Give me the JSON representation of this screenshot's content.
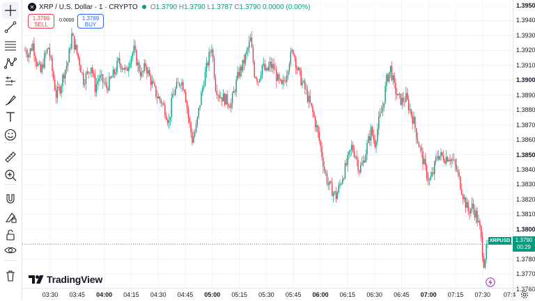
{
  "legend": {
    "symbol": "XRP / U.S. Dollar · 1 · CRYPTO",
    "o_label": "O",
    "o": "1.3790",
    "h_label": "H",
    "h": "1.3790",
    "l_label": "L",
    "l": "1.3787",
    "c_label": "C",
    "c": "1.3790",
    "change": "0.0000 (0.00%)"
  },
  "trade": {
    "sell_price": "1.3789",
    "sell_label": "SELL",
    "spread": "0.0000",
    "buy_price": "1.3789",
    "buy_label": "BUY"
  },
  "brand": {
    "wordmark": "TradingView"
  },
  "price_tag": {
    "symbol": "XRPUSD",
    "price": "1.3790",
    "countdown": "00:29"
  },
  "toolbar": {
    "icons": [
      "crosshair-icon",
      "trend-line-icon",
      "fib-retracement-icon",
      "pattern-icon",
      "prediction-icon",
      "brush-icon",
      "text-icon",
      "emoji-icon",
      "ruler-icon",
      "zoom-in-icon",
      "magnet-icon",
      "lock-drawings-icon",
      "unlock-icon",
      "eye-icon",
      "trash-icon"
    ]
  },
  "colors": {
    "up": "#089981",
    "down": "#f23645",
    "grid": "#f0f3fa",
    "accent": "#2962ff"
  },
  "chart_data": {
    "type": "candlestick",
    "symbol": "XRPUSD",
    "y_ticks": [
      "1.3950",
      "1.3940",
      "1.3930",
      "1.3920",
      "1.3910",
      "1.3900",
      "1.3890",
      "1.3880",
      "1.3870",
      "1.3860",
      "1.3850",
      "1.3840",
      "1.3830",
      "1.3820",
      "1.3810",
      "1.3800",
      "1.3790",
      "1.3780",
      "1.3770",
      "1.3760"
    ],
    "bold_y_ticks": [
      "1.3950",
      "1.3900",
      "1.3850",
      "1.3800"
    ],
    "x_ticks": [
      "03:30",
      "03:45",
      "04:00",
      "04:15",
      "04:30",
      "04:45",
      "05:00",
      "05:15",
      "05:30",
      "05:45",
      "06:00",
      "06:15",
      "06:30",
      "06:45",
      "07:00",
      "07:15",
      "07:30",
      "07:4"
    ],
    "bold_x_ticks": [
      "04:00",
      "05:00",
      "06:00",
      "07:00"
    ],
    "ylim": [
      1.376,
      1.3953
    ],
    "last_price": 1.379,
    "close_path": [
      [
        0,
        1.392
      ],
      [
        3,
        1.3918
      ],
      [
        6,
        1.3924
      ],
      [
        9,
        1.3912
      ],
      [
        12,
        1.3905
      ],
      [
        15,
        1.3915
      ],
      [
        18,
        1.3922
      ],
      [
        21,
        1.3906
      ],
      [
        24,
        1.389
      ],
      [
        27,
        1.3895
      ],
      [
        30,
        1.3905
      ],
      [
        33,
        1.3912
      ],
      [
        36,
        1.393
      ],
      [
        39,
        1.3921
      ],
      [
        42,
        1.3912
      ],
      [
        45,
        1.39
      ],
      [
        48,
        1.3904
      ],
      [
        51,
        1.391
      ],
      [
        54,
        1.3895
      ],
      [
        57,
        1.3902
      ],
      [
        60,
        1.3899
      ],
      [
        63,
        1.3895
      ],
      [
        66,
        1.39
      ],
      [
        69,
        1.3905
      ],
      [
        72,
        1.3912
      ],
      [
        75,
        1.391
      ],
      [
        78,
        1.3905
      ],
      [
        81,
        1.3915
      ],
      [
        84,
        1.392
      ],
      [
        87,
        1.391
      ],
      [
        90,
        1.3903
      ],
      [
        93,
        1.391
      ],
      [
        96,
        1.3902
      ],
      [
        99,
        1.3895
      ],
      [
        102,
        1.3889
      ],
      [
        105,
        1.3886
      ],
      [
        108,
        1.388
      ],
      [
        111,
        1.3872
      ],
      [
        114,
        1.389
      ],
      [
        117,
        1.3895
      ],
      [
        120,
        1.39
      ],
      [
        123,
        1.3895
      ],
      [
        126,
        1.3875
      ],
      [
        129,
        1.386
      ],
      [
        132,
        1.3868
      ],
      [
        135,
        1.3885
      ],
      [
        138,
        1.39
      ],
      [
        141,
        1.3912
      ],
      [
        144,
        1.3923
      ],
      [
        147,
        1.3896
      ],
      [
        150,
        1.389
      ],
      [
        153,
        1.3888
      ],
      [
        156,
        1.3886
      ],
      [
        159,
        1.3884
      ],
      [
        162,
        1.3895
      ],
      [
        165,
        1.3905
      ],
      [
        168,
        1.391
      ],
      [
        171,
        1.3918
      ],
      [
        174,
        1.3927
      ],
      [
        177,
        1.3905
      ],
      [
        180,
        1.39
      ],
      [
        183,
        1.391
      ],
      [
        186,
        1.3905
      ],
      [
        189,
        1.391
      ],
      [
        192,
        1.3908
      ],
      [
        195,
        1.39
      ],
      [
        198,
        1.3895
      ],
      [
        201,
        1.3902
      ],
      [
        204,
        1.3914
      ],
      [
        207,
        1.392
      ],
      [
        210,
        1.3908
      ],
      [
        213,
        1.39
      ],
      [
        216,
        1.3894
      ],
      [
        219,
        1.3886
      ],
      [
        222,
        1.3878
      ],
      [
        225,
        1.3868
      ],
      [
        228,
        1.3855
      ],
      [
        231,
        1.384
      ],
      [
        234,
        1.383
      ],
      [
        237,
        1.3826
      ],
      [
        240,
        1.3822
      ],
      [
        243,
        1.383
      ],
      [
        246,
        1.3838
      ],
      [
        249,
        1.3846
      ],
      [
        252,
        1.3855
      ],
      [
        255,
        1.385
      ],
      [
        258,
        1.384
      ],
      [
        261,
        1.3845
      ],
      [
        264,
        1.3856
      ],
      [
        267,
        1.3866
      ],
      [
        270,
        1.3858
      ],
      [
        273,
        1.3872
      ],
      [
        276,
        1.3882
      ],
      [
        279,
        1.39
      ],
      [
        282,
        1.3908
      ],
      [
        285,
        1.3895
      ],
      [
        288,
        1.3888
      ],
      [
        291,
        1.3886
      ],
      [
        294,
        1.3888
      ],
      [
        297,
        1.388
      ],
      [
        300,
        1.3872
      ],
      [
        303,
        1.386
      ],
      [
        306,
        1.385
      ],
      [
        309,
        1.384
      ],
      [
        312,
        1.3832
      ],
      [
        315,
        1.3838
      ],
      [
        318,
        1.385
      ],
      [
        321,
        1.3849
      ],
      [
        324,
        1.3848
      ],
      [
        327,
        1.3849
      ],
      [
        330,
        1.3846
      ],
      [
        333,
        1.384
      ],
      [
        336,
        1.383
      ],
      [
        339,
        1.382
      ],
      [
        342,
        1.3812
      ],
      [
        345,
        1.3815
      ],
      [
        348,
        1.381
      ],
      [
        351,
        1.38
      ],
      [
        354,
        1.3778
      ],
      [
        357,
        1.379
      ]
    ]
  }
}
